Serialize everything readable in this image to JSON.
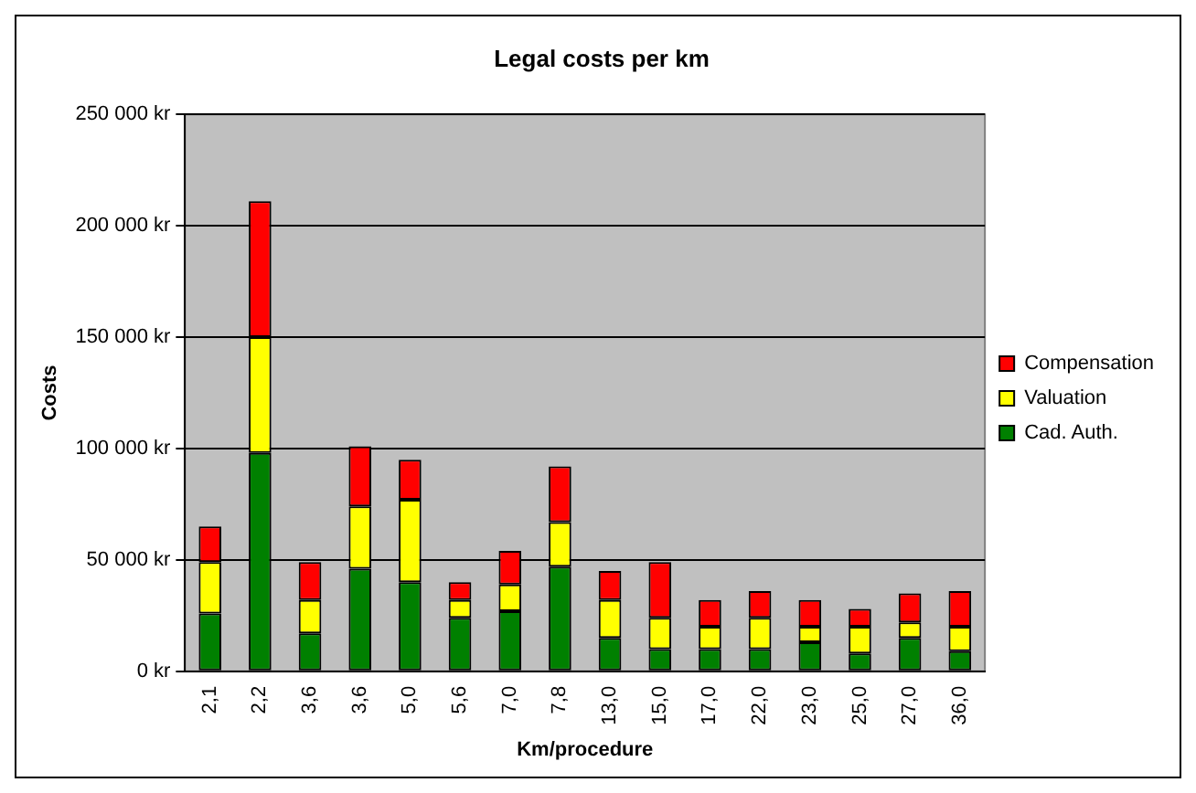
{
  "chart_data": {
    "type": "bar",
    "title": "Legal costs per km",
    "xlabel": "Km/procedure",
    "ylabel": "Costs",
    "categories": [
      "2,1",
      "2,2",
      "3,6",
      "3,6",
      "5,0",
      "5,6",
      "7,0",
      "7,8",
      "13,0",
      "15,0",
      "17,0",
      "22,0",
      "23,0",
      "25,0",
      "27,0",
      "36,0"
    ],
    "stacked": true,
    "series": [
      {
        "name": "Cad. Auth.",
        "color": "#008000",
        "values": [
          26000,
          98000,
          17000,
          46000,
          40000,
          24000,
          27000,
          47000,
          15000,
          10000,
          10000,
          10000,
          13000,
          8000,
          15000,
          9000
        ]
      },
      {
        "name": "Valuation",
        "color": "#ffff00",
        "values": [
          23000,
          52000,
          15000,
          28000,
          37000,
          8000,
          12000,
          20000,
          17000,
          14000,
          10000,
          14000,
          7000,
          12000,
          7000,
          11000
        ]
      },
      {
        "name": "Compensation",
        "color": "#ff0000",
        "values": [
          16000,
          61000,
          17000,
          27000,
          18000,
          8000,
          15000,
          25000,
          13000,
          25000,
          12000,
          12000,
          12000,
          8000,
          13000,
          16000
        ]
      }
    ],
    "ylim": [
      0,
      250000
    ],
    "yticks": [
      {
        "value": 0,
        "label": "0 kr"
      },
      {
        "value": 50000,
        "label": "50 000 kr"
      },
      {
        "value": 100000,
        "label": "100 000 kr"
      },
      {
        "value": 150000,
        "label": "150 000 kr"
      },
      {
        "value": 200000,
        "label": "200 000 kr"
      },
      {
        "value": 250000,
        "label": "250 000 kr"
      }
    ],
    "grid": "y",
    "legend": "right"
  }
}
